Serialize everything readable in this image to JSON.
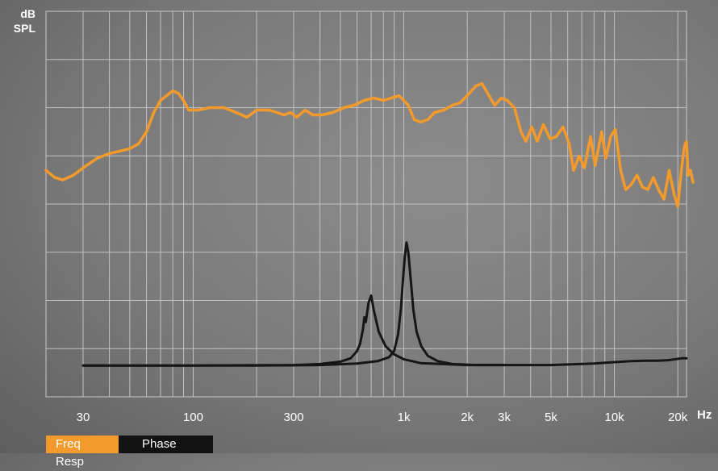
{
  "chart_data": {
    "type": "line",
    "title": "",
    "ylabel_line1": "dB",
    "ylabel_line2": "SPL",
    "xunit": "Hz",
    "x_scale": "log",
    "xlim": [
      20,
      22000
    ],
    "ylim": [
      0,
      8
    ],
    "grid": true,
    "x_ticks": [
      {
        "v": 30,
        "label": "30"
      },
      {
        "v": 100,
        "label": "100"
      },
      {
        "v": 300,
        "label": "300"
      },
      {
        "v": 1000,
        "label": "1k"
      },
      {
        "v": 2000,
        "label": "2k"
      },
      {
        "v": 3000,
        "label": "3k"
      },
      {
        "v": 5000,
        "label": "5k"
      },
      {
        "v": 10000,
        "label": "10k"
      },
      {
        "v": 20000,
        "label": "20k"
      }
    ],
    "series": [
      {
        "color": "#f39a2c",
        "points": [
          [
            20,
            4.7
          ],
          [
            22,
            4.55
          ],
          [
            24,
            4.5
          ],
          [
            27,
            4.6
          ],
          [
            30,
            4.75
          ],
          [
            35,
            4.95
          ],
          [
            40,
            5.05
          ],
          [
            45,
            5.1
          ],
          [
            50,
            5.15
          ],
          [
            55,
            5.25
          ],
          [
            60,
            5.5
          ],
          [
            65,
            5.9
          ],
          [
            70,
            6.15
          ],
          [
            80,
            6.35
          ],
          [
            85,
            6.3
          ],
          [
            90,
            6.15
          ],
          [
            95,
            5.95
          ],
          [
            105,
            5.95
          ],
          [
            120,
            6.0
          ],
          [
            140,
            6.0
          ],
          [
            160,
            5.9
          ],
          [
            180,
            5.8
          ],
          [
            200,
            5.95
          ],
          [
            230,
            5.95
          ],
          [
            250,
            5.9
          ],
          [
            270,
            5.85
          ],
          [
            290,
            5.9
          ],
          [
            310,
            5.8
          ],
          [
            340,
            5.95
          ],
          [
            370,
            5.85
          ],
          [
            410,
            5.85
          ],
          [
            460,
            5.9
          ],
          [
            520,
            6.0
          ],
          [
            580,
            6.05
          ],
          [
            650,
            6.15
          ],
          [
            720,
            6.2
          ],
          [
            800,
            6.15
          ],
          [
            870,
            6.2
          ],
          [
            950,
            6.25
          ],
          [
            1050,
            6.05
          ],
          [
            1120,
            5.75
          ],
          [
            1200,
            5.7
          ],
          [
            1300,
            5.75
          ],
          [
            1400,
            5.9
          ],
          [
            1550,
            5.95
          ],
          [
            1700,
            6.05
          ],
          [
            1850,
            6.1
          ],
          [
            2050,
            6.3
          ],
          [
            2200,
            6.45
          ],
          [
            2350,
            6.5
          ],
          [
            2500,
            6.3
          ],
          [
            2700,
            6.05
          ],
          [
            2900,
            6.2
          ],
          [
            3100,
            6.15
          ],
          [
            3350,
            6.0
          ],
          [
            3600,
            5.5
          ],
          [
            3800,
            5.3
          ],
          [
            4050,
            5.6
          ],
          [
            4300,
            5.3
          ],
          [
            4600,
            5.65
          ],
          [
            4950,
            5.35
          ],
          [
            5300,
            5.4
          ],
          [
            5700,
            5.6
          ],
          [
            6100,
            5.25
          ],
          [
            6400,
            4.7
          ],
          [
            6800,
            5.0
          ],
          [
            7200,
            4.75
          ],
          [
            7700,
            5.4
          ],
          [
            8100,
            4.8
          ],
          [
            8700,
            5.5
          ],
          [
            9100,
            4.95
          ],
          [
            9600,
            5.4
          ],
          [
            10100,
            5.55
          ],
          [
            10700,
            4.7
          ],
          [
            11300,
            4.3
          ],
          [
            12000,
            4.4
          ],
          [
            12800,
            4.6
          ],
          [
            13600,
            4.35
          ],
          [
            14400,
            4.3
          ],
          [
            15300,
            4.55
          ],
          [
            16200,
            4.3
          ],
          [
            17200,
            4.1
          ],
          [
            18200,
            4.7
          ],
          [
            19200,
            4.2
          ],
          [
            20000,
            3.95
          ],
          [
            20800,
            4.7
          ],
          [
            21500,
            5.2
          ],
          [
            22000,
            5.3
          ],
          [
            22400,
            4.6
          ],
          [
            23000,
            4.7
          ],
          [
            23600,
            4.45
          ]
        ]
      },
      {
        "color": "#161616",
        "points": [
          [
            30,
            0.65
          ],
          [
            100,
            0.65
          ],
          [
            300,
            0.66
          ],
          [
            400,
            0.68
          ],
          [
            500,
            0.73
          ],
          [
            560,
            0.8
          ],
          [
            600,
            0.95
          ],
          [
            620,
            1.1
          ],
          [
            640,
            1.4
          ],
          [
            650,
            1.65
          ],
          [
            660,
            1.55
          ],
          [
            680,
            1.95
          ],
          [
            700,
            2.1
          ],
          [
            720,
            1.8
          ],
          [
            760,
            1.35
          ],
          [
            820,
            1.05
          ],
          [
            900,
            0.88
          ],
          [
            1000,
            0.78
          ],
          [
            1200,
            0.7
          ],
          [
            2000,
            0.66
          ],
          [
            5000,
            0.66
          ],
          [
            8000,
            0.69
          ],
          [
            10000,
            0.72
          ],
          [
            12000,
            0.74
          ],
          [
            14000,
            0.75
          ],
          [
            16000,
            0.75
          ],
          [
            18000,
            0.76
          ],
          [
            21000,
            0.8
          ],
          [
            22000,
            0.8
          ]
        ]
      },
      {
        "color": "#161616",
        "points": [
          [
            30,
            0.65
          ],
          [
            200,
            0.65
          ],
          [
            400,
            0.66
          ],
          [
            600,
            0.69
          ],
          [
            750,
            0.74
          ],
          [
            850,
            0.82
          ],
          [
            900,
            0.95
          ],
          [
            940,
            1.3
          ],
          [
            970,
            1.85
          ],
          [
            990,
            2.4
          ],
          [
            1010,
            2.9
          ],
          [
            1030,
            3.2
          ],
          [
            1050,
            3.0
          ],
          [
            1080,
            2.4
          ],
          [
            1110,
            1.8
          ],
          [
            1150,
            1.35
          ],
          [
            1210,
            1.05
          ],
          [
            1300,
            0.85
          ],
          [
            1450,
            0.74
          ],
          [
            1700,
            0.68
          ],
          [
            2200,
            0.66
          ],
          [
            3000,
            0.66
          ]
        ]
      }
    ]
  },
  "tabs": {
    "freq_label": "Freq Resp",
    "phase_label": "Phase"
  }
}
